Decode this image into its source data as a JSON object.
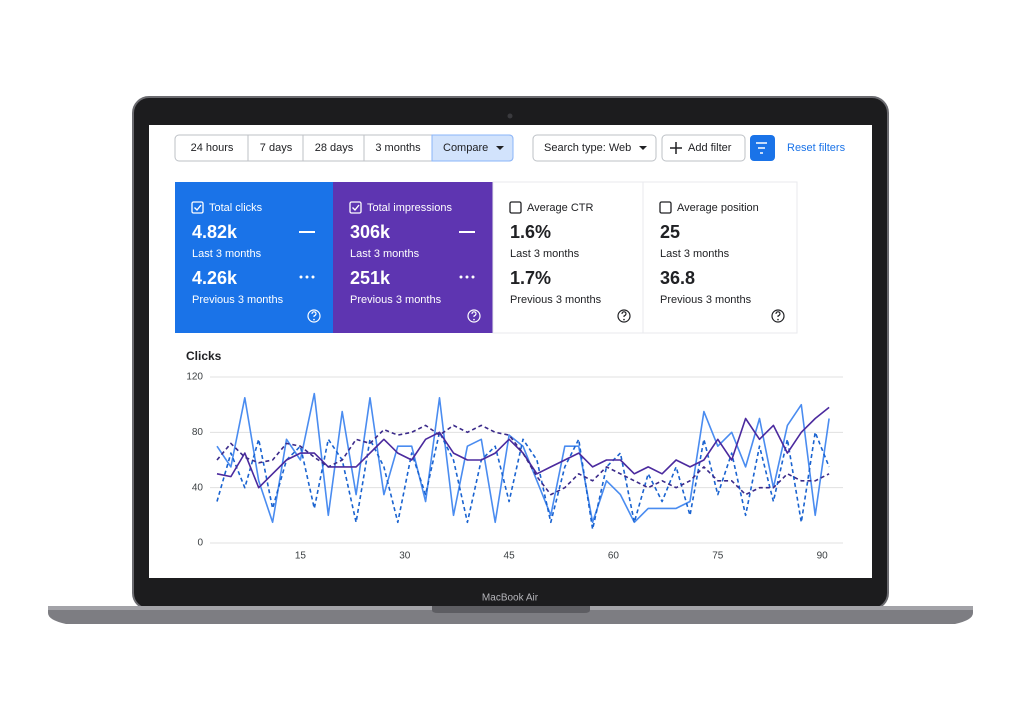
{
  "toolbar": {
    "ranges": [
      "24 hours",
      "7 days",
      "28 days",
      "3 months",
      "Compare"
    ],
    "search_type": "Search type: Web",
    "add_filter": "Add filter",
    "reset": "Reset filters"
  },
  "cards": [
    {
      "label": "Total clicks",
      "value": "4.82k",
      "period": "Last 3 months",
      "prev_value": "4.26k",
      "prev_period": "Previous 3 months"
    },
    {
      "label": "Total impressions",
      "value": "306k",
      "period": "Last 3 months",
      "prev_value": "251k",
      "prev_period": "Previous 3 months"
    },
    {
      "label": "Average CTR",
      "value": "1.6%",
      "period": "Last 3 months",
      "prev_value": "1.7%",
      "prev_period": "Previous 3 months"
    },
    {
      "label": "Average position",
      "value": "25",
      "period": "Last 3 months",
      "prev_value": "36.8",
      "prev_period": "Previous 3 months"
    }
  ],
  "device_label": "MacBook Air",
  "chart_data": {
    "type": "line",
    "title": "Clicks",
    "x": [
      3,
      5,
      7,
      9,
      11,
      13,
      15,
      17,
      19,
      21,
      23,
      25,
      27,
      29,
      31,
      33,
      35,
      37,
      39,
      41,
      43,
      45,
      47,
      49,
      51,
      53,
      55,
      57,
      59,
      61,
      63,
      65,
      67,
      69,
      71,
      73,
      75,
      77,
      79,
      81,
      83,
      85,
      87,
      89,
      91
    ],
    "series": [
      {
        "color": "#4a8cf0",
        "dashed": false,
        "values": [
          70,
          55,
          105,
          45,
          15,
          75,
          60,
          108,
          20,
          95,
          35,
          105,
          35,
          70,
          70,
          30,
          105,
          20,
          70,
          75,
          15,
          78,
          70,
          45,
          20,
          70,
          70,
          15,
          45,
          35,
          15,
          25,
          25,
          25,
          30,
          95,
          70,
          80,
          55,
          90,
          40,
          85,
          100,
          20,
          90
        ]
      },
      {
        "color": "#1a63d0",
        "dashed": true,
        "values": [
          30,
          65,
          40,
          75,
          25,
          60,
          70,
          25,
          75,
          60,
          15,
          75,
          55,
          15,
          65,
          35,
          80,
          60,
          15,
          60,
          70,
          30,
          75,
          60,
          15,
          55,
          75,
          10,
          55,
          65,
          15,
          50,
          30,
          55,
          20,
          75,
          35,
          65,
          20,
          70,
          30,
          75,
          15,
          80,
          55
        ]
      },
      {
        "color": "#4b2a9e",
        "dashed": false,
        "values": [
          50,
          48,
          65,
          40,
          50,
          60,
          65,
          65,
          55,
          55,
          55,
          65,
          75,
          65,
          60,
          75,
          80,
          65,
          60,
          60,
          65,
          75,
          65,
          50,
          55,
          60,
          65,
          55,
          60,
          60,
          50,
          55,
          50,
          60,
          55,
          60,
          75,
          60,
          90,
          75,
          85,
          65,
          80,
          90,
          98
        ]
      },
      {
        "color": "#3b2a8a",
        "dashed": true,
        "values": [
          60,
          72,
          62,
          58,
          60,
          72,
          70,
          62,
          55,
          60,
          75,
          72,
          82,
          78,
          80,
          85,
          78,
          85,
          80,
          85,
          80,
          78,
          65,
          48,
          35,
          40,
          50,
          45,
          55,
          50,
          45,
          40,
          45,
          40,
          45,
          55,
          45,
          45,
          35,
          40,
          40,
          50,
          45,
          45,
          50
        ]
      }
    ],
    "xlim": [
      2,
      93
    ],
    "ylim": [
      0,
      120
    ],
    "xticks": [
      15,
      30,
      45,
      60,
      75,
      90
    ],
    "yticks": [
      0,
      40,
      80,
      120
    ],
    "grid": true
  }
}
